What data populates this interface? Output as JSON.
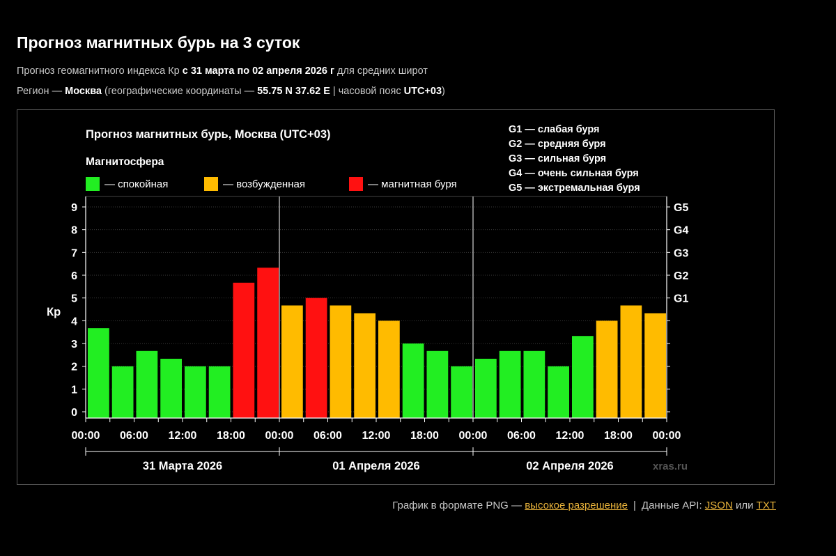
{
  "page": {
    "title": "Прогноз магнитных бурь на 3 суток",
    "sub1": {
      "prefix": "Прогноз геомагнитного индекса Кр ",
      "bold": "с 31 марта по 02 апреля 2026 г",
      "suffix": " для средних широт"
    },
    "sub2": {
      "prefix": "Регион — ",
      "region": "Москва",
      "coords_prefix": " (географические координаты — ",
      "coords": "55.75 N 37.62 E",
      "tz_prefix": " | часовой пояс ",
      "tz": "UTC+03",
      "suffix": ")"
    }
  },
  "footer": {
    "png_text": "График в формате PNG — ",
    "png_link": "высокое разрешение",
    "separator": "|",
    "api_text": "Данные API: ",
    "json_link": "JSON",
    "or_text": " или ",
    "txt_link": "TXT"
  },
  "chart_data": {
    "type": "bar",
    "title": "Прогноз магнитных бурь, Москва (UTC+03)",
    "legend_title": "Магнитосфера",
    "legend": [
      {
        "label": "— спокойная",
        "color": "#22ee22"
      },
      {
        "label": "— возбужденная",
        "color": "#ffbb00"
      },
      {
        "label": "— магнитная буря",
        "color": "#ff1111"
      }
    ],
    "storm_levels": [
      "G1 — слабая буря",
      "G2 — средняя буря",
      "G3 — сильная буря",
      "G4 — очень сильная буря",
      "G5 — экстремальная буря"
    ],
    "ylabel": "Кр",
    "ylim": [
      0,
      9
    ],
    "yticks": [
      0,
      1,
      2,
      3,
      4,
      5,
      6,
      7,
      8,
      9
    ],
    "right_ticks": [
      {
        "label": "G1",
        "value": 5
      },
      {
        "label": "G2",
        "value": 6
      },
      {
        "label": "G3",
        "value": 7
      },
      {
        "label": "G4",
        "value": 8
      },
      {
        "label": "G5",
        "value": 9
      }
    ],
    "x_tick_labels": [
      "00:00",
      "06:00",
      "12:00",
      "18:00",
      "00:00",
      "06:00",
      "12:00",
      "18:00",
      "00:00",
      "06:00",
      "12:00",
      "18:00",
      "00:00"
    ],
    "days": [
      "31 Марта 2026",
      "01 Апреля 2026",
      "02 Апреля 2026"
    ],
    "values": [
      3.67,
      2.0,
      2.67,
      2.33,
      2.0,
      2.0,
      5.67,
      6.33,
      4.67,
      5.0,
      4.67,
      4.33,
      4.0,
      3.0,
      2.67,
      2.0,
      2.33,
      2.67,
      2.67,
      2.0,
      3.33,
      4.0,
      4.67,
      4.33
    ],
    "status": [
      "quiet",
      "quiet",
      "quiet",
      "quiet",
      "quiet",
      "quiet",
      "storm",
      "storm",
      "active",
      "storm",
      "active",
      "active",
      "active",
      "quiet",
      "quiet",
      "quiet",
      "quiet",
      "quiet",
      "quiet",
      "quiet",
      "quiet",
      "active",
      "active",
      "active"
    ],
    "status_colors": {
      "quiet": "#22ee22",
      "active": "#ffbb00",
      "storm": "#ff1111"
    },
    "watermark": "xras.ru",
    "grid": true
  }
}
